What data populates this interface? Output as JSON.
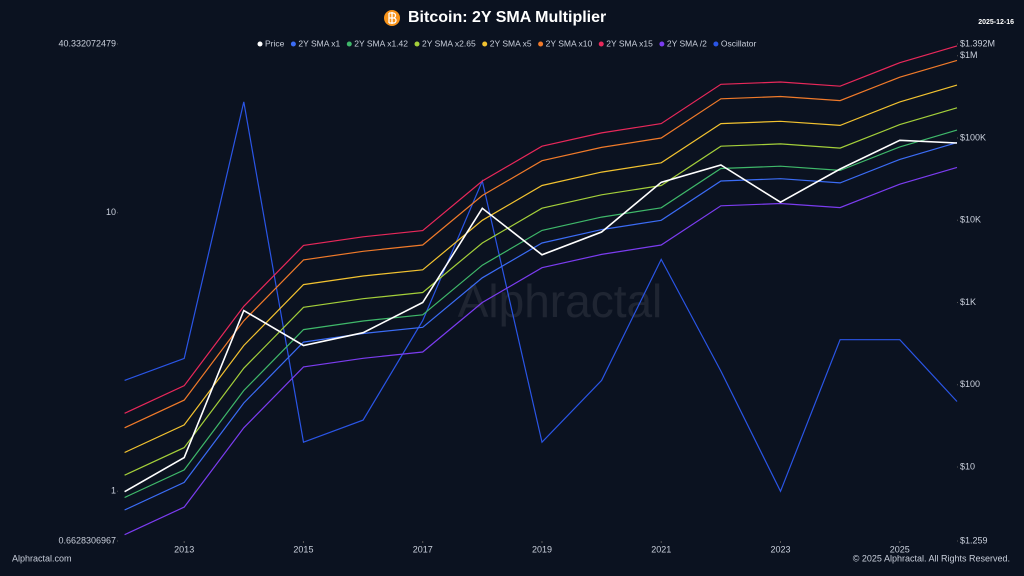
{
  "chart_data": {
    "type": "line",
    "title": "Bitcoin: 2Y SMA Multiplier",
    "date": "2025-12-16",
    "watermark": "Alphractal",
    "footer_left": "Alphractal.com",
    "footer_right": "© 2025 Alphractal. All Rights Reserved.",
    "log_scale": true,
    "grid": false,
    "legend": "top",
    "x": [
      2012,
      2013,
      2014,
      2015,
      2016,
      2017,
      2018,
      2019,
      2020,
      2021,
      2022,
      2023,
      2024,
      2025,
      2025.96
    ],
    "xlim": [
      2011.89,
      2025.96
    ],
    "xticks": [
      2013,
      2015,
      2017,
      2019,
      2021,
      2023,
      2025
    ],
    "ylim": [
      0.6628306967,
      40.332072479
    ],
    "yticks": [
      0.6628306967,
      1,
      10,
      40.332072479
    ],
    "y2lim": [
      1.259,
      1392000
    ],
    "y2ticks": [
      {
        "value": 1.259,
        "label": "$1.259"
      },
      {
        "value": 10,
        "label": "$10"
      },
      {
        "value": 100,
        "label": "$100"
      },
      {
        "value": 1000,
        "label": "$1K"
      },
      {
        "value": 10000,
        "label": "$10K"
      },
      {
        "value": 100000,
        "label": "$100K"
      },
      {
        "value": 1000000,
        "label": "$1M"
      },
      {
        "value": 1392000,
        "label": "$1.392M"
      }
    ],
    "series": [
      {
        "name": "Price",
        "color": "#ffffff",
        "axis": "y2",
        "values": [
          5,
          13,
          800,
          300,
          430,
          1000,
          14000,
          3800,
          7200,
          29000,
          47000,
          16600,
          42000,
          94000,
          87000
        ]
      },
      {
        "name": "2Y SMA x1",
        "color": "#3b6cf5",
        "axis": "y2",
        "values": [
          3,
          6.5,
          60,
          330,
          420,
          500,
          2000,
          5300,
          7700,
          10000,
          30000,
          32000,
          28500,
          55000,
          88000
        ]
      },
      {
        "name": "2Y SMA x1.42",
        "color": "#3fb86a",
        "axis": "y2",
        "values": [
          4.26,
          9.23,
          85.2,
          468.6,
          596.4,
          710,
          2840,
          7526,
          10934,
          14200,
          42600,
          45440,
          40470,
          78100,
          124960
        ]
      },
      {
        "name": "2Y SMA x2.65",
        "color": "#a4cf3a",
        "axis": "y2",
        "values": [
          7.95,
          17.225,
          159,
          874.5,
          1113,
          1325,
          5300,
          14045,
          20405,
          26500,
          79500,
          84800,
          75525,
          145750,
          233200
        ]
      },
      {
        "name": "2Y SMA x5",
        "color": "#f2c230",
        "axis": "y2",
        "values": [
          15,
          32.5,
          300,
          1650,
          2100,
          2500,
          10000,
          26500,
          38500,
          50000,
          150000,
          160000,
          142500,
          275000,
          440000
        ]
      },
      {
        "name": "2Y SMA x10",
        "color": "#f07a2a",
        "axis": "y2",
        "values": [
          30,
          65,
          600,
          3300,
          4200,
          5000,
          20000,
          53000,
          77000,
          100000,
          300000,
          320000,
          285000,
          550000,
          880000
        ]
      },
      {
        "name": "2Y SMA x15",
        "color": "#e8285a",
        "axis": "y2",
        "values": [
          45,
          97.5,
          900,
          4950,
          6300,
          7500,
          30000,
          79500,
          115500,
          150000,
          450000,
          480000,
          427500,
          825000,
          1320000
        ]
      },
      {
        "name": "2Y SMA /2",
        "color": "#7b3cf0",
        "axis": "y2",
        "values": [
          1.5,
          3.25,
          30,
          165,
          210,
          250,
          1000,
          2650,
          3850,
          5000,
          15000,
          16000,
          14250,
          27500,
          44000
        ]
      },
      {
        "name": "Oscillator",
        "color": "#2a55e6",
        "axis": "y",
        "values": [
          2.5,
          3.0,
          25,
          1.5,
          1.8,
          4.1,
          13,
          1.5,
          2.5,
          6.8,
          2.7,
          1.0,
          3.5,
          3.5,
          2.1
        ]
      }
    ]
  }
}
